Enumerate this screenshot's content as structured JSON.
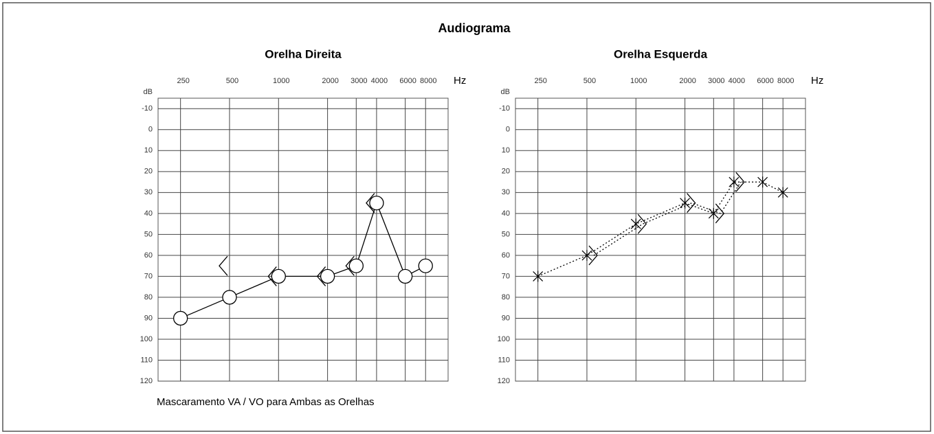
{
  "title": "Audiograma",
  "note": "Mascaramento  VA / VO para Ambas as Orelhas",
  "chart_data": [
    {
      "type": "audiogram",
      "title": "Orelha Direita",
      "xlabel": "Hz",
      "ylabel": "dB",
      "xscale": "log",
      "xlim": [
        182,
        11000
      ],
      "xticks": [
        250,
        500,
        1000,
        2000,
        3000,
        4000,
        6000,
        8000
      ],
      "ylim": [
        -15,
        120
      ],
      "y_reversed": true,
      "yticks": [
        -10,
        0,
        10,
        20,
        30,
        40,
        50,
        60,
        70,
        80,
        90,
        100,
        110,
        120
      ],
      "grid": true,
      "series": [
        {
          "marker": "circle",
          "line": "solid",
          "color": "#000000",
          "x": [
            250,
            500,
            1000,
            2000,
            3000,
            4000,
            6000,
            8000
          ],
          "values": [
            90,
            80,
            70,
            70,
            65,
            35,
            70,
            65
          ]
        },
        {
          "marker": "bracket-left",
          "line": "none",
          "color": "#000000",
          "x": [
            500,
            1000,
            2000,
            3000,
            4000
          ],
          "values": [
            65,
            70,
            70,
            65,
            35
          ]
        }
      ]
    },
    {
      "type": "audiogram",
      "title": "Orelha Esquerda",
      "xlabel": "Hz",
      "ylabel": "dB",
      "xscale": "log",
      "xlim": [
        182,
        11000
      ],
      "xticks": [
        250,
        500,
        1000,
        2000,
        3000,
        4000,
        6000,
        8000
      ],
      "ylim": [
        -15,
        120
      ],
      "y_reversed": true,
      "yticks": [
        -10,
        0,
        10,
        20,
        30,
        40,
        50,
        60,
        70,
        80,
        90,
        100,
        110,
        120
      ],
      "grid": true,
      "series": [
        {
          "marker": "cross",
          "line": "dotted",
          "color": "#000000",
          "x": [
            250,
            500,
            1000,
            2000,
            3000,
            4000,
            6000,
            8000
          ],
          "values": [
            70,
            60,
            45,
            35,
            40,
            25,
            25,
            30
          ]
        },
        {
          "marker": "bracket-right",
          "line": "dotted",
          "color": "#000000",
          "x": [
            500,
            1000,
            2000,
            3000,
            4000
          ],
          "values": [
            60,
            45,
            35,
            40,
            25
          ]
        }
      ]
    }
  ]
}
